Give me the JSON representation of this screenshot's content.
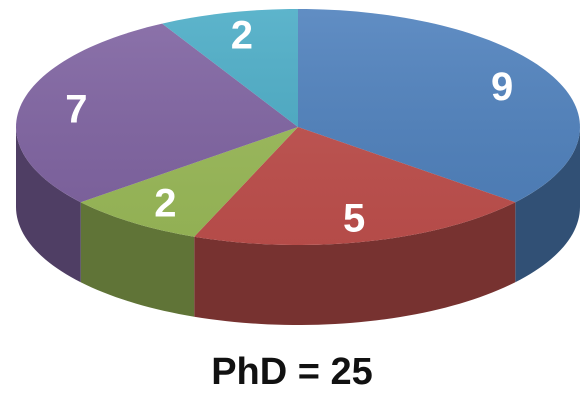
{
  "chart_data": {
    "type": "pie",
    "style": "3d",
    "title": "",
    "caption": "PhD = 25",
    "start": "top-center",
    "direction": "clockwise",
    "legend": "none",
    "slices": [
      {
        "value": 9,
        "label": "9",
        "color": "#4f81bd"
      },
      {
        "value": 5,
        "label": "5",
        "color": "#c0504d"
      },
      {
        "value": 2,
        "label": "2",
        "color": "#9bbb59"
      },
      {
        "value": 7,
        "label": "7",
        "color": "#8064a2"
      },
      {
        "value": 2,
        "label": "2",
        "color": "#4bacc6"
      }
    ]
  }
}
